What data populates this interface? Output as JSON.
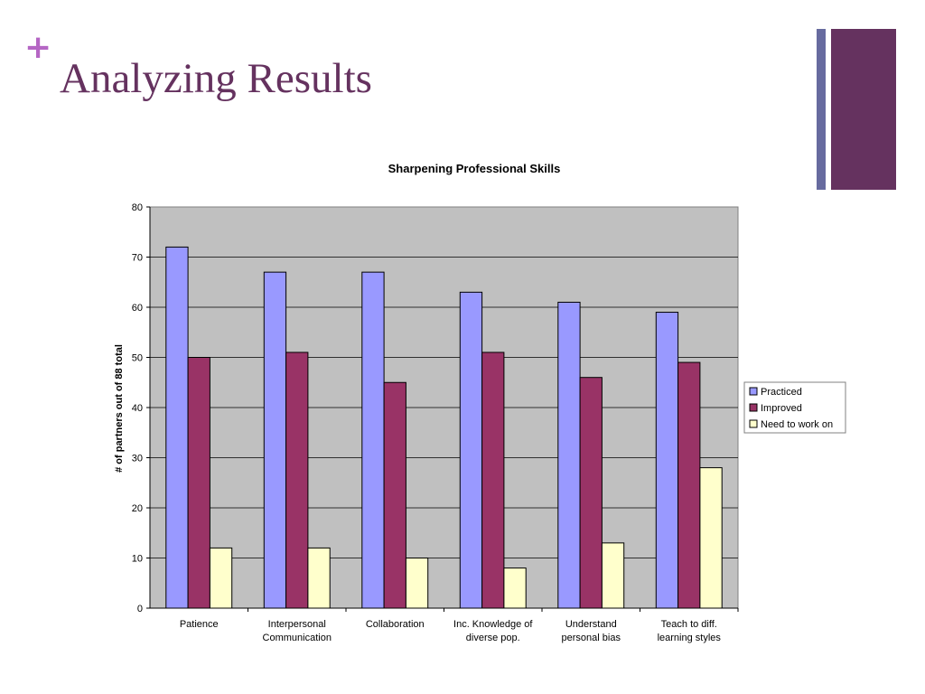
{
  "slide": {
    "title": "Analyzing Results",
    "plus_symbol": "+",
    "colors": {
      "title": "#65325f",
      "plus": "#b566c4",
      "deco_bar_thin": "#676b9f",
      "deco_bar_thick": "#65325f"
    }
  },
  "chart_data": {
    "type": "bar",
    "title": "Sharpening Professional Skills",
    "xlabel": "",
    "ylabel": "# of partners out of 88 total",
    "ylim": [
      0,
      80
    ],
    "yticks": [
      0,
      10,
      20,
      30,
      40,
      50,
      60,
      70,
      80
    ],
    "grid": true,
    "legend_position": "right",
    "plot_background": "#c0c0c0",
    "categories": [
      [
        "Patience"
      ],
      [
        "Interpersonal",
        "Communication"
      ],
      [
        "Collaboration"
      ],
      [
        "Inc. Knowledge of",
        "diverse pop."
      ],
      [
        "Understand",
        "personal bias"
      ],
      [
        "Teach to diff.",
        "learning styles"
      ]
    ],
    "series": [
      {
        "name": "Practiced",
        "color": "#9999ff",
        "values": [
          72,
          67,
          67,
          63,
          61,
          59
        ]
      },
      {
        "name": "Improved",
        "color": "#993366",
        "values": [
          50,
          51,
          45,
          51,
          46,
          49
        ]
      },
      {
        "name": "Need to work on",
        "color": "#ffffcc",
        "values": [
          12,
          12,
          10,
          8,
          13,
          28
        ]
      }
    ]
  }
}
